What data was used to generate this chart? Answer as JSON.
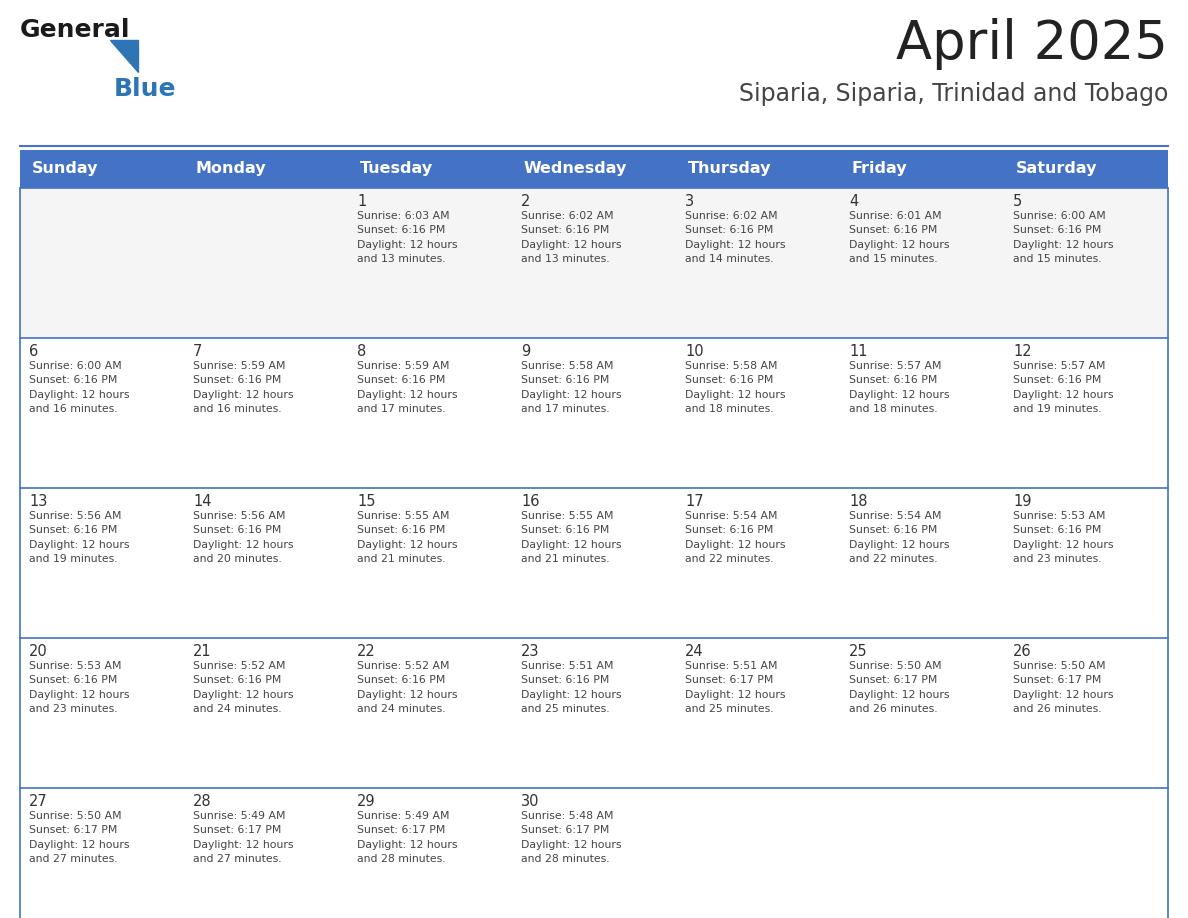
{
  "title": "April 2025",
  "subtitle": "Siparia, Siparia, Trinidad and Tobago",
  "title_color": "#222222",
  "subtitle_color": "#444444",
  "header_bg_color": "#4472C4",
  "header_text_color": "#FFFFFF",
  "cell_bg_white": "#FFFFFF",
  "cell_bg_light": "#F5F5F5",
  "grid_line_color": "#4472C4",
  "day_headers": [
    "Sunday",
    "Monday",
    "Tuesday",
    "Wednesday",
    "Thursday",
    "Friday",
    "Saturday"
  ],
  "logo_text1": "General",
  "logo_text2": "Blue",
  "logo_color1": "#1a1a1a",
  "logo_color2": "#2E75B6",
  "logo_tri_color": "#2E75B6",
  "calendar_data": [
    [
      {
        "day": "",
        "info": ""
      },
      {
        "day": "",
        "info": ""
      },
      {
        "day": "1",
        "info": "Sunrise: 6:03 AM\nSunset: 6:16 PM\nDaylight: 12 hours\nand 13 minutes."
      },
      {
        "day": "2",
        "info": "Sunrise: 6:02 AM\nSunset: 6:16 PM\nDaylight: 12 hours\nand 13 minutes."
      },
      {
        "day": "3",
        "info": "Sunrise: 6:02 AM\nSunset: 6:16 PM\nDaylight: 12 hours\nand 14 minutes."
      },
      {
        "day": "4",
        "info": "Sunrise: 6:01 AM\nSunset: 6:16 PM\nDaylight: 12 hours\nand 15 minutes."
      },
      {
        "day": "5",
        "info": "Sunrise: 6:00 AM\nSunset: 6:16 PM\nDaylight: 12 hours\nand 15 minutes."
      }
    ],
    [
      {
        "day": "6",
        "info": "Sunrise: 6:00 AM\nSunset: 6:16 PM\nDaylight: 12 hours\nand 16 minutes."
      },
      {
        "day": "7",
        "info": "Sunrise: 5:59 AM\nSunset: 6:16 PM\nDaylight: 12 hours\nand 16 minutes."
      },
      {
        "day": "8",
        "info": "Sunrise: 5:59 AM\nSunset: 6:16 PM\nDaylight: 12 hours\nand 17 minutes."
      },
      {
        "day": "9",
        "info": "Sunrise: 5:58 AM\nSunset: 6:16 PM\nDaylight: 12 hours\nand 17 minutes."
      },
      {
        "day": "10",
        "info": "Sunrise: 5:58 AM\nSunset: 6:16 PM\nDaylight: 12 hours\nand 18 minutes."
      },
      {
        "day": "11",
        "info": "Sunrise: 5:57 AM\nSunset: 6:16 PM\nDaylight: 12 hours\nand 18 minutes."
      },
      {
        "day": "12",
        "info": "Sunrise: 5:57 AM\nSunset: 6:16 PM\nDaylight: 12 hours\nand 19 minutes."
      }
    ],
    [
      {
        "day": "13",
        "info": "Sunrise: 5:56 AM\nSunset: 6:16 PM\nDaylight: 12 hours\nand 19 minutes."
      },
      {
        "day": "14",
        "info": "Sunrise: 5:56 AM\nSunset: 6:16 PM\nDaylight: 12 hours\nand 20 minutes."
      },
      {
        "day": "15",
        "info": "Sunrise: 5:55 AM\nSunset: 6:16 PM\nDaylight: 12 hours\nand 21 minutes."
      },
      {
        "day": "16",
        "info": "Sunrise: 5:55 AM\nSunset: 6:16 PM\nDaylight: 12 hours\nand 21 minutes."
      },
      {
        "day": "17",
        "info": "Sunrise: 5:54 AM\nSunset: 6:16 PM\nDaylight: 12 hours\nand 22 minutes."
      },
      {
        "day": "18",
        "info": "Sunrise: 5:54 AM\nSunset: 6:16 PM\nDaylight: 12 hours\nand 22 minutes."
      },
      {
        "day": "19",
        "info": "Sunrise: 5:53 AM\nSunset: 6:16 PM\nDaylight: 12 hours\nand 23 minutes."
      }
    ],
    [
      {
        "day": "20",
        "info": "Sunrise: 5:53 AM\nSunset: 6:16 PM\nDaylight: 12 hours\nand 23 minutes."
      },
      {
        "day": "21",
        "info": "Sunrise: 5:52 AM\nSunset: 6:16 PM\nDaylight: 12 hours\nand 24 minutes."
      },
      {
        "day": "22",
        "info": "Sunrise: 5:52 AM\nSunset: 6:16 PM\nDaylight: 12 hours\nand 24 minutes."
      },
      {
        "day": "23",
        "info": "Sunrise: 5:51 AM\nSunset: 6:16 PM\nDaylight: 12 hours\nand 25 minutes."
      },
      {
        "day": "24",
        "info": "Sunrise: 5:51 AM\nSunset: 6:17 PM\nDaylight: 12 hours\nand 25 minutes."
      },
      {
        "day": "25",
        "info": "Sunrise: 5:50 AM\nSunset: 6:17 PM\nDaylight: 12 hours\nand 26 minutes."
      },
      {
        "day": "26",
        "info": "Sunrise: 5:50 AM\nSunset: 6:17 PM\nDaylight: 12 hours\nand 26 minutes."
      }
    ],
    [
      {
        "day": "27",
        "info": "Sunrise: 5:50 AM\nSunset: 6:17 PM\nDaylight: 12 hours\nand 27 minutes."
      },
      {
        "day": "28",
        "info": "Sunrise: 5:49 AM\nSunset: 6:17 PM\nDaylight: 12 hours\nand 27 minutes."
      },
      {
        "day": "29",
        "info": "Sunrise: 5:49 AM\nSunset: 6:17 PM\nDaylight: 12 hours\nand 28 minutes."
      },
      {
        "day": "30",
        "info": "Sunrise: 5:48 AM\nSunset: 6:17 PM\nDaylight: 12 hours\nand 28 minutes."
      },
      {
        "day": "",
        "info": ""
      },
      {
        "day": "",
        "info": ""
      },
      {
        "day": "",
        "info": ""
      }
    ]
  ]
}
